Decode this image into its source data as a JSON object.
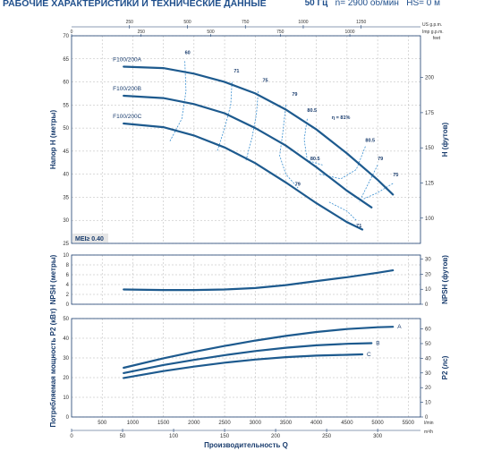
{
  "header": {
    "title": "РАБОЧИЕ ХАРАКТЕРИСТИКИ И ТЕХНИЧЕСКИЕ ДАННЫЕ",
    "freq": "50 Гц",
    "speed": "n= 2900 об/мин",
    "hs": "HS= 0 м"
  },
  "chart_data": [
    {
      "type": "line",
      "name": "head",
      "ylabel": "Напор H (метры)",
      "ylabel_right": "H (футов)",
      "ylim": [
        25,
        70
      ],
      "yticks": [
        25,
        30,
        35,
        40,
        45,
        50,
        55,
        60,
        65,
        70
      ],
      "yticks_right": [
        100,
        125,
        150,
        175,
        200
      ],
      "top_axis_usgpm": {
        "unit": "US g.p.m.",
        "ticks": [
          250,
          500,
          750,
          1000,
          1250
        ]
      },
      "top_axis_impgpm": {
        "unit": "Imp g.p.m.",
        "ticks": [
          0,
          250,
          500,
          750,
          1000
        ]
      },
      "unit_right": "feet",
      "series": [
        {
          "name": "F100/200A",
          "x": [
            850,
            1500,
            2000,
            2500,
            3000,
            3500,
            4000,
            4500,
            5000,
            5250
          ],
          "values": [
            63.3,
            63.0,
            61.8,
            60.0,
            57.5,
            54.0,
            49.7,
            44.5,
            38.8,
            35.6
          ]
        },
        {
          "name": "F100/200B",
          "x": [
            850,
            1500,
            2000,
            2500,
            3000,
            3500,
            4000,
            4500,
            4900
          ],
          "values": [
            57.0,
            56.5,
            55.2,
            53.2,
            50.0,
            46.2,
            41.5,
            36.4,
            32.8
          ]
        },
        {
          "name": "F100/200C",
          "x": [
            850,
            1500,
            2000,
            2500,
            3000,
            3500,
            4000,
            4500,
            4750
          ],
          "values": [
            51.0,
            50.2,
            48.4,
            45.8,
            42.4,
            38.2,
            33.7,
            29.6,
            28.0
          ]
        }
      ],
      "efficiency_labels": [
        "60",
        "71",
        "75",
        "79",
        "80.5",
        "η = 81%",
        "80.5",
        "79",
        "75",
        "80.5",
        "79",
        "71"
      ],
      "mei": "MEI≥ 0.40"
    },
    {
      "type": "line",
      "name": "npsh",
      "ylabel": "NPSH (метры)",
      "ylabel_right": "NPSH (футов)",
      "ylim": [
        0,
        10
      ],
      "yticks": [
        0,
        2,
        4,
        6,
        8,
        10
      ],
      "yticks_right": [
        0,
        10,
        20,
        30
      ],
      "series": [
        {
          "x": [
            850,
            1500,
            2000,
            2500,
            3000,
            3500,
            4000,
            4500,
            5000,
            5250
          ],
          "values": [
            3.0,
            2.9,
            2.9,
            3.0,
            3.3,
            3.9,
            4.7,
            5.5,
            6.4,
            6.9
          ]
        }
      ]
    },
    {
      "type": "line",
      "name": "power",
      "ylabel": "Потребляемая мощность P2 (кВт)",
      "ylabel_right": "P2 (лс)",
      "ylim": [
        0,
        50
      ],
      "yticks": [
        0,
        10,
        20,
        30,
        40,
        50
      ],
      "yticks_right": [
        0,
        10,
        20,
        30,
        40,
        50,
        60
      ],
      "xlabel": "Производительность Q",
      "xticks_lmin": [
        0,
        500,
        1000,
        1500,
        2000,
        2500,
        3000,
        3500,
        4000,
        4500,
        5000,
        5500
      ],
      "unit_lmin": "l/min",
      "xticks_m3h": [
        0,
        50,
        100,
        150,
        200,
        250,
        300
      ],
      "unit_m3h": "m³/h",
      "series": [
        {
          "name": "A",
          "x": [
            850,
            1500,
            2000,
            2500,
            3000,
            3500,
            4000,
            4500,
            5000,
            5250
          ],
          "values": [
            25.0,
            29.8,
            33.1,
            36.1,
            38.8,
            41.2,
            43.2,
            44.7,
            45.6,
            45.8
          ]
        },
        {
          "name": "B",
          "x": [
            850,
            1500,
            2000,
            2500,
            3000,
            3500,
            4000,
            4500,
            4900
          ],
          "values": [
            22.3,
            26.4,
            29.0,
            31.4,
            33.5,
            35.2,
            36.4,
            37.2,
            37.5
          ]
        },
        {
          "name": "C",
          "x": [
            850,
            1500,
            2000,
            2500,
            3000,
            3500,
            4000,
            4500,
            4750
          ],
          "values": [
            19.8,
            23.3,
            25.6,
            27.6,
            29.2,
            30.4,
            31.2,
            31.6,
            31.8
          ]
        }
      ]
    }
  ]
}
